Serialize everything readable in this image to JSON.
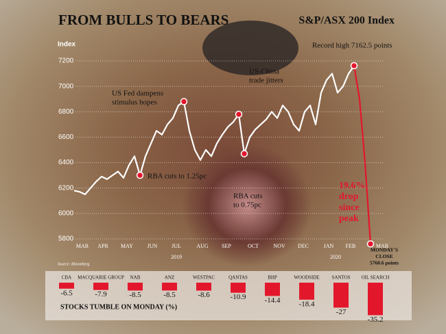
{
  "chart_data": {
    "type": "line",
    "title": "FROM BULLS TO BEARS",
    "subtitle": "S&P/ASX 200 Index",
    "y_label": "Index",
    "ylim": [
      5800,
      7200
    ],
    "yticks": [
      5800,
      6000,
      6200,
      6400,
      6600,
      6800,
      7000,
      7200
    ],
    "grid": true,
    "months": [
      "MAR",
      "APR",
      "MAY",
      "JUN",
      "JUL",
      "AUG",
      "SEP",
      "OCT",
      "NOV",
      "DEC",
      "JAN",
      "FEB",
      "MAR"
    ],
    "years": [
      "2019",
      "2020"
    ],
    "source": "Source: Bloomberg",
    "series": [
      {
        "color": "#ffffff",
        "drop_color": "#e3172c",
        "values": [
          6180,
          6170,
          6150,
          6200,
          6250,
          6290,
          6270,
          6300,
          6330,
          6280,
          6380,
          6450,
          6300,
          6450,
          6550,
          6650,
          6620,
          6700,
          6750,
          6850,
          6880,
          6650,
          6500,
          6420,
          6500,
          6450,
          6550,
          6620,
          6680,
          6720,
          6780,
          6470,
          6600,
          6660,
          6700,
          6740,
          6800,
          6750,
          6850,
          6800,
          6700,
          6650,
          6800,
          6850,
          6700,
          6950,
          7050,
          7100,
          6950,
          7000,
          7100,
          7162.5,
          6900,
          6400,
          5760.6
        ]
      }
    ],
    "annotations": [
      {
        "lines": [
          "Record high 7162.5 points"
        ]
      },
      {
        "lines": [
          "US-China",
          "trade jitters"
        ]
      },
      {
        "lines": [
          "US Fed dampens",
          "stimulus hopes"
        ]
      },
      {
        "lines": [
          "RBA cuts to 1.25pc"
        ]
      },
      {
        "lines": [
          "RBA cuts",
          "to 0.75pc"
        ]
      },
      {
        "lines": [
          "19.6%",
          "drop",
          "since",
          "peak"
        ]
      },
      {
        "lines": [
          "MONDAY'S",
          "CLOSE",
          "5760.6 points"
        ]
      }
    ]
  },
  "stocks": {
    "title": "STOCKS TUMBLE ON MONDAY (%)",
    "color": "#e3172c",
    "categories": [
      "CBA",
      "MACQUARIE GROUP",
      "NAB",
      "ANZ",
      "WESTPAC",
      "QANTAS",
      "BHP",
      "WOODSIDE",
      "SANTOS",
      "OIL SEARCH"
    ],
    "values": [
      -6.5,
      -7.9,
      -8.5,
      -8.5,
      -8.6,
      -10.9,
      -14.4,
      -18.4,
      -27,
      -35.2
    ]
  }
}
